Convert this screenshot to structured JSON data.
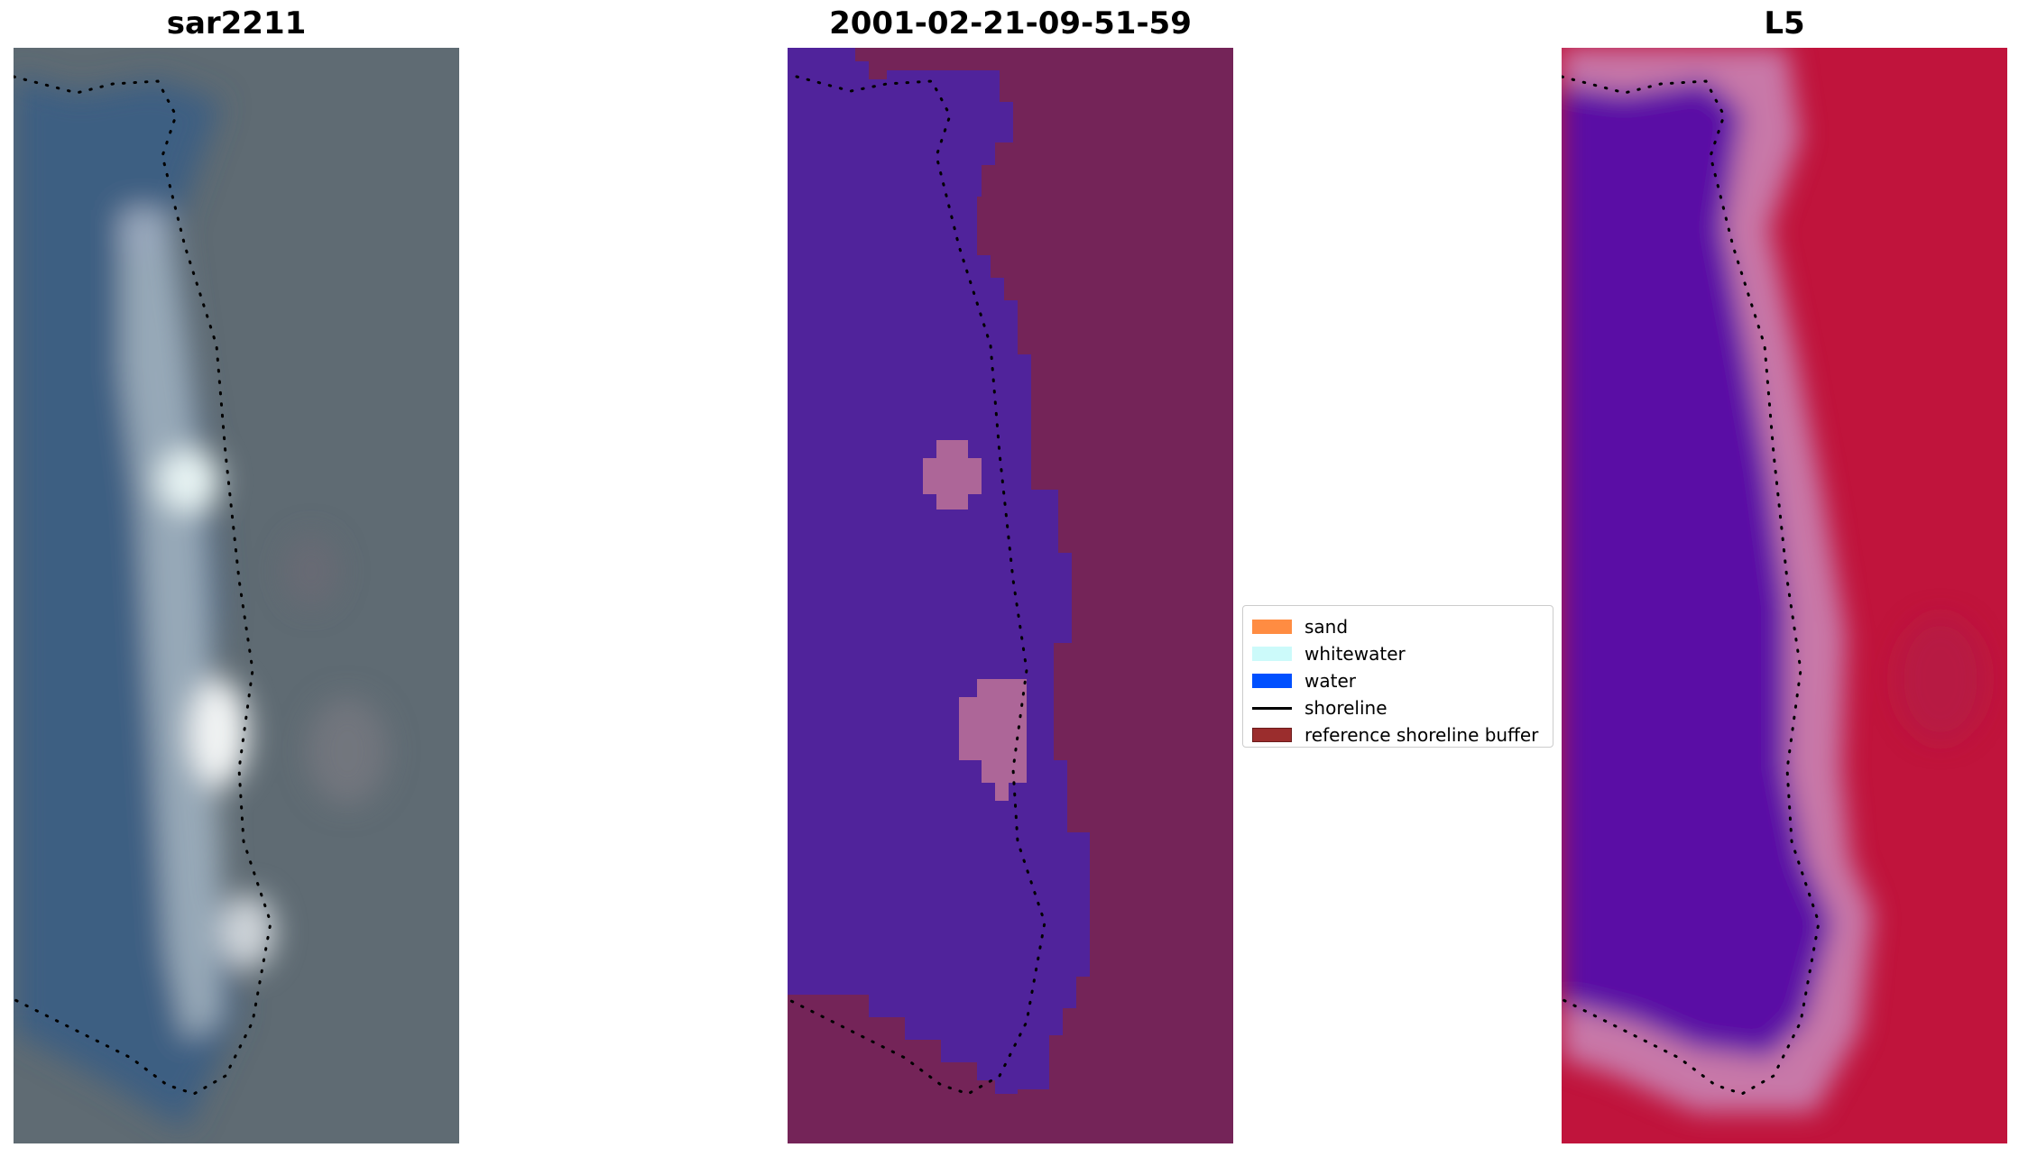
{
  "panels": [
    {
      "title": "sar2211"
    },
    {
      "title": "2001-02-21-09-51-59"
    },
    {
      "title": "L5"
    }
  ],
  "legend": {
    "items": [
      {
        "label": "sand",
        "kind": "patch",
        "color": "#ff8c42"
      },
      {
        "label": "whitewater",
        "kind": "patch",
        "color": "#ccfafa"
      },
      {
        "label": "water",
        "kind": "patch",
        "color": "#0050ff"
      },
      {
        "label": "shoreline",
        "kind": "line",
        "color": "#000000"
      },
      {
        "label": "reference shoreline buffer",
        "kind": "patch",
        "color": "#9b2d2d"
      }
    ]
  },
  "colors": {
    "rgb_water": "#3c5f82",
    "rgb_land": "#5f6b73",
    "rgb_whitewater": "#e8f4f4",
    "class_water": "#50239b",
    "class_land": "#742458",
    "class_sand_patch": "#ad6698",
    "index_water": "#5a0aa5",
    "index_land": "#c0143c",
    "index_transition": "#c878a8"
  }
}
